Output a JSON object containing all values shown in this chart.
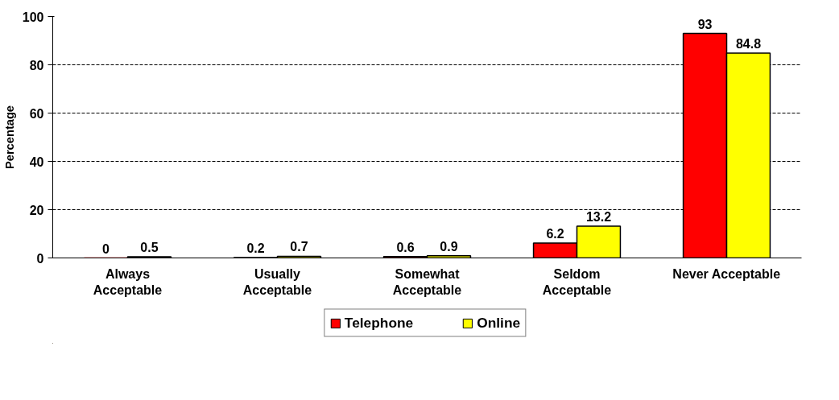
{
  "chart_data": {
    "type": "bar",
    "ylabel": "Percentage",
    "categories": [
      "Always\nAcceptable",
      "Usually\nAcceptable",
      "Somewhat\nAcceptable",
      "Seldom\nAcceptable",
      "Never Acceptable"
    ],
    "series": [
      {
        "name": "Telephone",
        "color": "#ff0000",
        "values": [
          0,
          0.2,
          0.6,
          6.2,
          93
        ]
      },
      {
        "name": "Online",
        "color": "#ffff00",
        "values": [
          0.5,
          0.7,
          0.9,
          13.2,
          84.8
        ]
      }
    ],
    "ylim": [
      0,
      100
    ],
    "yticks": [
      0,
      20,
      40,
      60,
      80,
      100
    ],
    "grid": "y",
    "legend": "bottom",
    "data_labels": true
  }
}
